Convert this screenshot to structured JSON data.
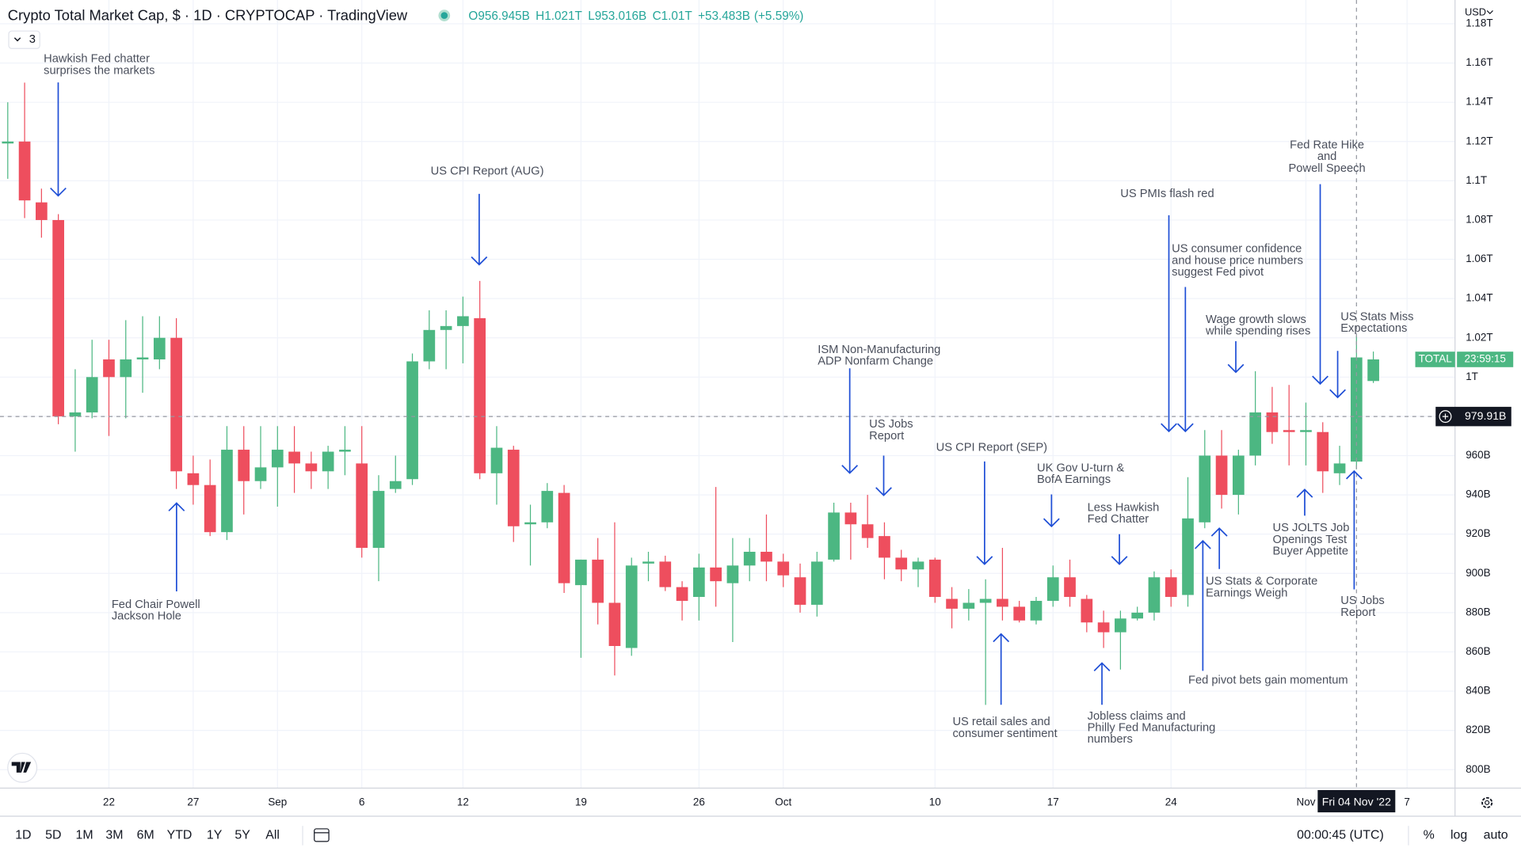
{
  "chart_data": {
    "type": "candlestick",
    "title": "Crypto Total Market Cap, $ · 1D · CRYPTOCAP · TradingView",
    "ohlc_legend": {
      "open": {
        "value": 956.945,
        "label": "O956.945B"
      },
      "high": {
        "value": 1021,
        "label": "H1.021T"
      },
      "low": {
        "value": 953.016,
        "label": "L953.016B"
      },
      "close": {
        "value": 1010,
        "label": "C1.01T"
      },
      "change": {
        "value": 53.483,
        "label": "+53.483B"
      },
      "change_percent": {
        "value": 5.59,
        "label": "(+5.59%)"
      }
    },
    "collapsed_indicators": 3,
    "currency": "USD",
    "up_color": "#4cb782",
    "down_color": "#ee4e5e",
    "annotation_color": "#1f4fd6",
    "grid": true,
    "categories": [
      null,
      null,
      null,
      null,
      null,
      null,
      "22",
      null,
      null,
      null,
      null,
      "27",
      null,
      null,
      null,
      null,
      "Sep",
      null,
      null,
      null,
      null,
      "6",
      null,
      null,
      null,
      null,
      null,
      "12",
      null,
      null,
      null,
      null,
      null,
      null,
      "19",
      null,
      null,
      null,
      null,
      null,
      null,
      "26",
      null,
      null,
      null,
      null,
      "Oct",
      null,
      null,
      null,
      null,
      null,
      null,
      null,
      null,
      "10",
      null,
      null,
      null,
      null,
      null,
      null,
      "17",
      null,
      null,
      null,
      null,
      null,
      null,
      "24",
      null,
      null,
      null,
      null,
      null,
      null,
      null,
      "Nov",
      null,
      null,
      null,
      null,
      null,
      "7"
    ],
    "open": [
      1119,
      1120,
      1089,
      1080,
      980,
      982,
      1009,
      1000,
      1009,
      1009,
      1020,
      951,
      945,
      921,
      963,
      947,
      954,
      962,
      956,
      952,
      962,
      956,
      913,
      943,
      948,
      1008,
      1024,
      1026,
      1030,
      951,
      963,
      925,
      926,
      941,
      894,
      907,
      885,
      862,
      905,
      906,
      893,
      888,
      903,
      895,
      904,
      911,
      906,
      898,
      884,
      907,
      931,
      925,
      919,
      908,
      902,
      907,
      887,
      882,
      885,
      887,
      883,
      876,
      886,
      898,
      887,
      875,
      870,
      877,
      880,
      898,
      889,
      926,
      960,
      940,
      960,
      982,
      973,
      972,
      972,
      951,
      956.945,
      998,
      null,
      null
    ],
    "high": [
      1140,
      1150,
      1096,
      1083,
      1004,
      1019,
      1019,
      1029,
      1031,
      1031,
      1030,
      960,
      958,
      975,
      975,
      975,
      975,
      975,
      962,
      965,
      975,
      975,
      950,
      960,
      1012,
      1034,
      1034,
      1041,
      1049,
      975,
      965,
      935,
      946,
      945,
      907,
      918,
      926,
      908,
      911,
      909,
      896,
      910,
      944,
      918,
      918,
      930,
      910,
      905,
      911,
      936,
      936,
      940,
      926,
      912,
      908,
      908,
      893,
      892,
      897,
      913,
      886,
      888,
      904,
      907,
      889,
      881,
      881,
      883,
      901,
      902,
      949,
      973,
      973,
      963,
      1003,
      995,
      996,
      987,
      977,
      965,
      1021,
      1013,
      null,
      null
    ],
    "low": [
      1101,
      1081,
      1071,
      976,
      962,
      979,
      970,
      979,
      992,
      1004,
      943,
      935,
      919,
      917,
      930,
      943,
      934,
      941,
      943,
      943,
      950,
      908,
      896,
      941,
      945,
      1004,
      1004,
      1007,
      948,
      935,
      916,
      904,
      923,
      890,
      857,
      874,
      848,
      858,
      896,
      891,
      876,
      876,
      883,
      865,
      896,
      896,
      893,
      880,
      878,
      906,
      907,
      913,
      897,
      896,
      893,
      885,
      872,
      876,
      833,
      876,
      875,
      874,
      883,
      883,
      870,
      862,
      851,
      876,
      876,
      883,
      883,
      923,
      933,
      930,
      955,
      966,
      955,
      955,
      941,
      945,
      953.016,
      997,
      null,
      null
    ],
    "close": [
      1120,
      1090,
      1080,
      980,
      982,
      1000,
      1000,
      1009,
      1010,
      1020,
      952,
      945,
      921,
      963,
      947,
      954,
      963,
      956,
      952,
      962,
      963,
      913,
      942,
      947,
      1008,
      1024,
      1026,
      1031,
      951,
      964,
      924,
      926,
      942,
      895,
      907,
      885,
      863,
      904,
      906,
      893,
      886,
      903,
      896,
      904,
      911,
      906,
      899,
      884,
      906,
      931,
      925,
      918,
      908,
      902,
      906,
      888,
      882,
      885,
      887,
      883,
      876,
      886,
      898,
      888,
      875,
      870,
      877,
      880,
      898,
      888,
      928,
      960,
      940,
      960,
      982,
      972,
      972,
      973,
      952,
      956,
      1010,
      1009,
      null,
      null
    ],
    "ylim": [
      790.6,
      1192.1
    ],
    "yticks": [
      {
        "value": 800,
        "label": "800B"
      },
      {
        "value": 820,
        "label": "820B"
      },
      {
        "value": 840,
        "label": "840B"
      },
      {
        "value": 860,
        "label": "860B"
      },
      {
        "value": 880,
        "label": "880B"
      },
      {
        "value": 900,
        "label": "900B"
      },
      {
        "value": 920,
        "label": "920B"
      },
      {
        "value": 940,
        "label": "940B"
      },
      {
        "value": 960,
        "label": "960B"
      },
      {
        "value": 980,
        "label": "980B"
      },
      {
        "value": 1000,
        "label": "1T"
      },
      {
        "value": 1020,
        "label": "1.02T"
      },
      {
        "value": 1040,
        "label": "1.04T"
      },
      {
        "value": 1060,
        "label": "1.06T"
      },
      {
        "value": 1080,
        "label": "1.08T"
      },
      {
        "value": 1100,
        "label": "1.1T"
      },
      {
        "value": 1120,
        "label": "1.12T"
      },
      {
        "value": 1140,
        "label": "1.14T"
      },
      {
        "value": 1160,
        "label": "1.16T"
      },
      {
        "value": 1180,
        "label": "1.18T"
      }
    ],
    "crosshair_price": {
      "value": 979.91,
      "label": "979.91B"
    },
    "crosshair_date": "Fri 04 Nov '22",
    "last_price_label": {
      "symbol": "TOTAL",
      "countdown": "23:59:15"
    },
    "annotations": [
      {
        "lines": [
          "Hawkish Fed chatter",
          "surprises the markets"
        ]
      },
      {
        "lines": [
          "US CPI Report (AUG)"
        ]
      },
      {
        "lines": [
          "Fed Chair Powell",
          "Jackson Hole"
        ]
      },
      {
        "lines": [
          "ISM Non-Manufacturing",
          "ADP Nonfarm Change"
        ]
      },
      {
        "lines": [
          "US Jobs",
          "Report"
        ]
      },
      {
        "lines": [
          "US CPI Report (SEP)"
        ]
      },
      {
        "lines": [
          "UK Gov U-turn &",
          "BofA Earnings"
        ]
      },
      {
        "lines": [
          "Less Hawkish",
          "Fed Chatter"
        ]
      },
      {
        "lines": [
          "US retail sales and",
          "consumer sentiment"
        ]
      },
      {
        "lines": [
          "Jobless claims and",
          "Philly Fed Manufacturing",
          "numbers"
        ]
      },
      {
        "lines": [
          "US PMIs flash red"
        ]
      },
      {
        "lines": [
          "US consumer confidence",
          "and house price numbers",
          "suggest Fed pivot"
        ]
      },
      {
        "lines": [
          "Wage growth slows",
          "while spending rises"
        ]
      },
      {
        "lines": [
          "Fed Rate Hike",
          "and",
          "Powell Speech"
        ]
      },
      {
        "lines": [
          "US Stats Miss",
          "Expectations"
        ]
      },
      {
        "lines": [
          "US Stats & Corporate",
          "Earnings Weigh"
        ]
      },
      {
        "lines": [
          "Fed pivot bets gain momentum"
        ]
      },
      {
        "lines": [
          "US JOLTS Job",
          "Openings Test",
          "Buyer Appetite"
        ]
      },
      {
        "lines": [
          "US Jobs",
          "Report"
        ]
      }
    ],
    "toolbar": {
      "ranges": [
        "1D",
        "5D",
        "1M",
        "3M",
        "6M",
        "YTD",
        "1Y",
        "5Y",
        "All"
      ],
      "clock": "00:00:45 (UTC)",
      "scale_options": [
        "%",
        "log",
        "auto"
      ]
    }
  }
}
